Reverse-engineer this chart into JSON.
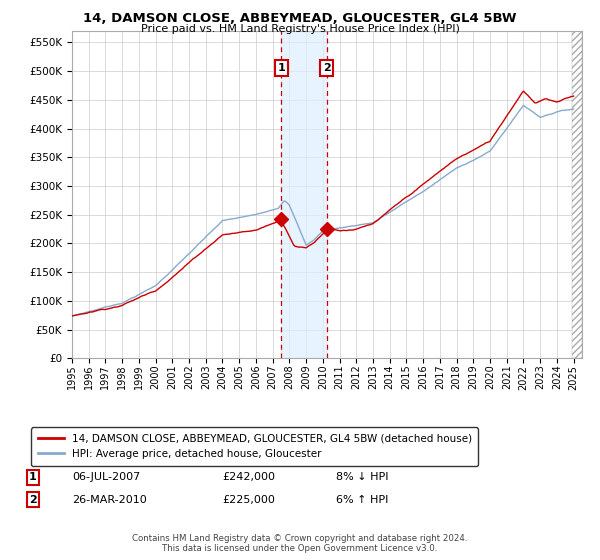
{
  "title": "14, DAMSON CLOSE, ABBEYMEAD, GLOUCESTER, GL4 5BW",
  "subtitle": "Price paid vs. HM Land Registry's House Price Index (HPI)",
  "ylabel_ticks": [
    "£0",
    "£50K",
    "£100K",
    "£150K",
    "£200K",
    "£250K",
    "£300K",
    "£350K",
    "£400K",
    "£450K",
    "£500K",
    "£550K"
  ],
  "ylim": [
    0,
    570000
  ],
  "xlim_start": 1995.0,
  "xlim_end": 2025.5,
  "legend_line1": "14, DAMSON CLOSE, ABBEYMEAD, GLOUCESTER, GL4 5BW (detached house)",
  "legend_line2": "HPI: Average price, detached house, Gloucester",
  "annotation1_label": "1",
  "annotation1_date": "06-JUL-2007",
  "annotation1_price": "£242,000",
  "annotation1_hpi": "8% ↓ HPI",
  "annotation2_label": "2",
  "annotation2_date": "26-MAR-2010",
  "annotation2_price": "£225,000",
  "annotation2_hpi": "6% ↑ HPI",
  "sale1_x": 2007.51,
  "sale1_y": 242000,
  "sale2_x": 2010.23,
  "sale2_y": 225000,
  "line_color_price": "#cc0000",
  "line_color_hpi": "#88aacc",
  "hatch_color": "#ddeeff",
  "footer_text": "Contains HM Land Registry data © Crown copyright and database right 2024.\nThis data is licensed under the Open Government Licence v3.0.",
  "background_color": "#ffffff",
  "grid_color": "#cccccc"
}
